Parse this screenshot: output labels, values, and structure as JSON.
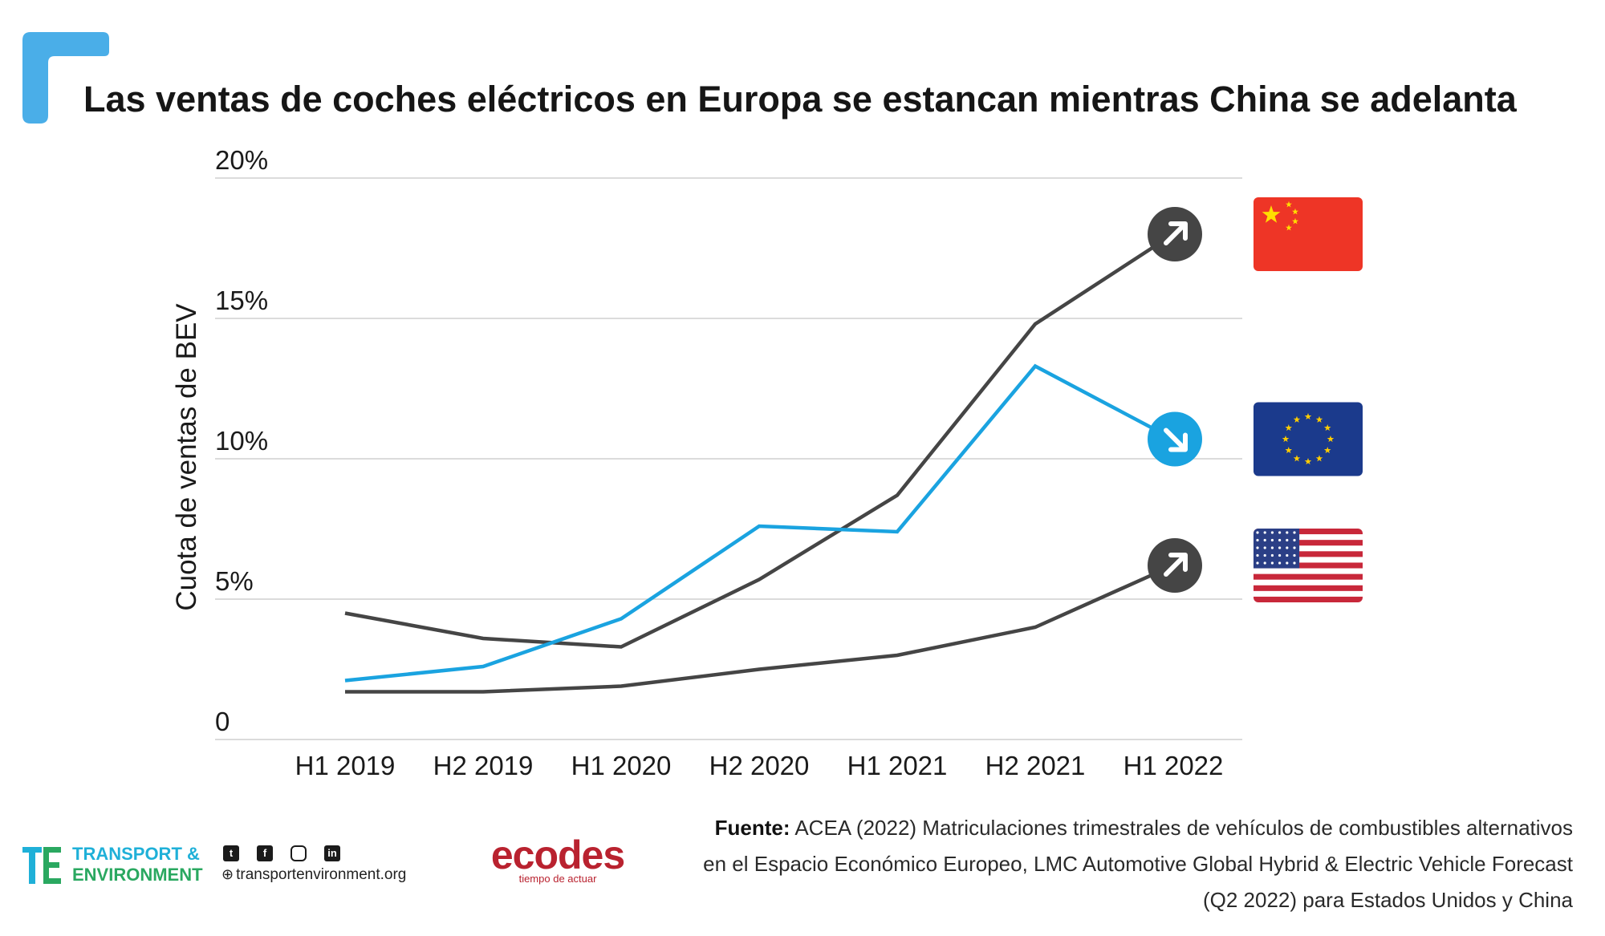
{
  "title": "Las ventas de coches eléctricos en Europa se estancan mientras China se adelanta",
  "chart_data": {
    "type": "line",
    "title": "Las ventas de coches eléctricos en Europa se estancan mientras China se adelanta",
    "ylabel": "Cuota de ventas de BEV",
    "xlabel": "",
    "ylim": [
      0,
      20
    ],
    "yticks": [
      {
        "value": 0,
        "label": "0"
      },
      {
        "value": 5,
        "label": "5%"
      },
      {
        "value": 10,
        "label": "10%"
      },
      {
        "value": 15,
        "label": "15%"
      },
      {
        "value": 20,
        "label": "20%"
      }
    ],
    "categories": [
      "H1 2019",
      "H2 2019",
      "H1 2020",
      "H2 2020",
      "H1 2021",
      "H2 2021",
      "H1 2022"
    ],
    "grid": true,
    "series": [
      {
        "name": "China",
        "color": "#454545",
        "trend": "up",
        "flag": "china-flag",
        "values": [
          4.5,
          3.6,
          3.3,
          5.7,
          8.7,
          14.8,
          18.0
        ]
      },
      {
        "name": "Europa",
        "color": "#1aa3e0",
        "trend": "down",
        "flag": "eu-flag",
        "values": [
          2.1,
          2.6,
          4.3,
          7.6,
          7.4,
          13.3,
          10.7
        ]
      },
      {
        "name": "Estados Unidos",
        "color": "#454545",
        "trend": "up",
        "flag": "us-flag",
        "values": [
          1.7,
          1.7,
          1.9,
          2.5,
          3.0,
          4.0,
          6.2
        ]
      }
    ]
  },
  "colors": {
    "accent_blue": "#4aaee8",
    "china_red": "#ee3526",
    "china_star": "#ffde00",
    "eu_blue": "#1b3a8c",
    "eu_star": "#ffcc00",
    "us_red": "#c8283a",
    "us_blue": "#2b3f86"
  },
  "source": {
    "label": "Fuente:",
    "text": "ACEA (2022) Matriculaciones trimestrales de vehículos de combustibles alternativos en el Espacio Económico Europeo, LMC Automotive Global Hybrid & Electric Vehicle Forecast (Q2 2022) para Estados Unidos y China"
  },
  "footer": {
    "te_logo_line1": "TRANSPORT &",
    "te_logo_line2": "ENVIRONMENT",
    "website": "transportenvironment.org",
    "social_icons": [
      "twitter-icon",
      "facebook-icon",
      "instagram-icon",
      "linkedin-icon"
    ],
    "ecodes_name": "ecodes",
    "ecodes_tagline": "tiempo de actuar"
  }
}
